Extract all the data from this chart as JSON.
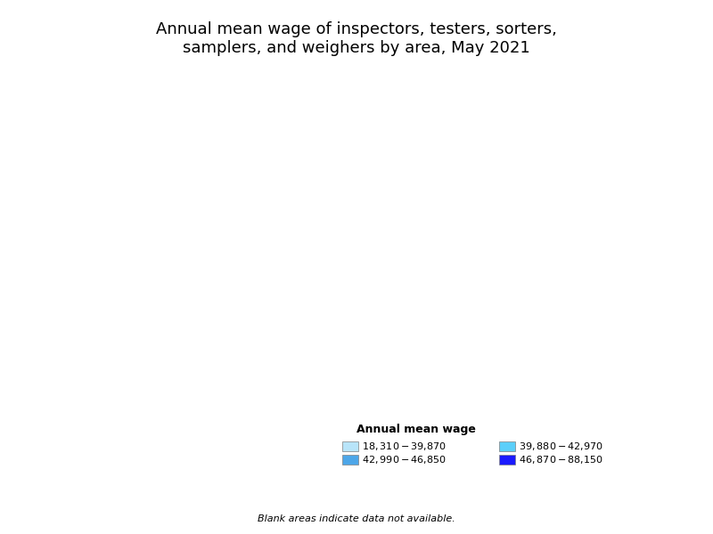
{
  "title": "Annual mean wage of inspectors, testers, sorters,\nsamplers, and weighers by area, May 2021",
  "title_fontsize": 14,
  "legend_title": "Annual mean wage",
  "legend_labels": [
    "$18,310 - $39,870",
    "$42,990 - $46,850",
    "$39,880 - $42,970",
    "$46,870 - $88,150"
  ],
  "legend_colors": [
    "#b3e0f2",
    "#4da6e8",
    "#00bfff",
    "#0000cd"
  ],
  "blank_note": "Blank areas indicate data not available.",
  "background_color": "#ffffff",
  "map_background": "#ffffff",
  "ocean_color": "#ffffff",
  "border_color": "#000000"
}
